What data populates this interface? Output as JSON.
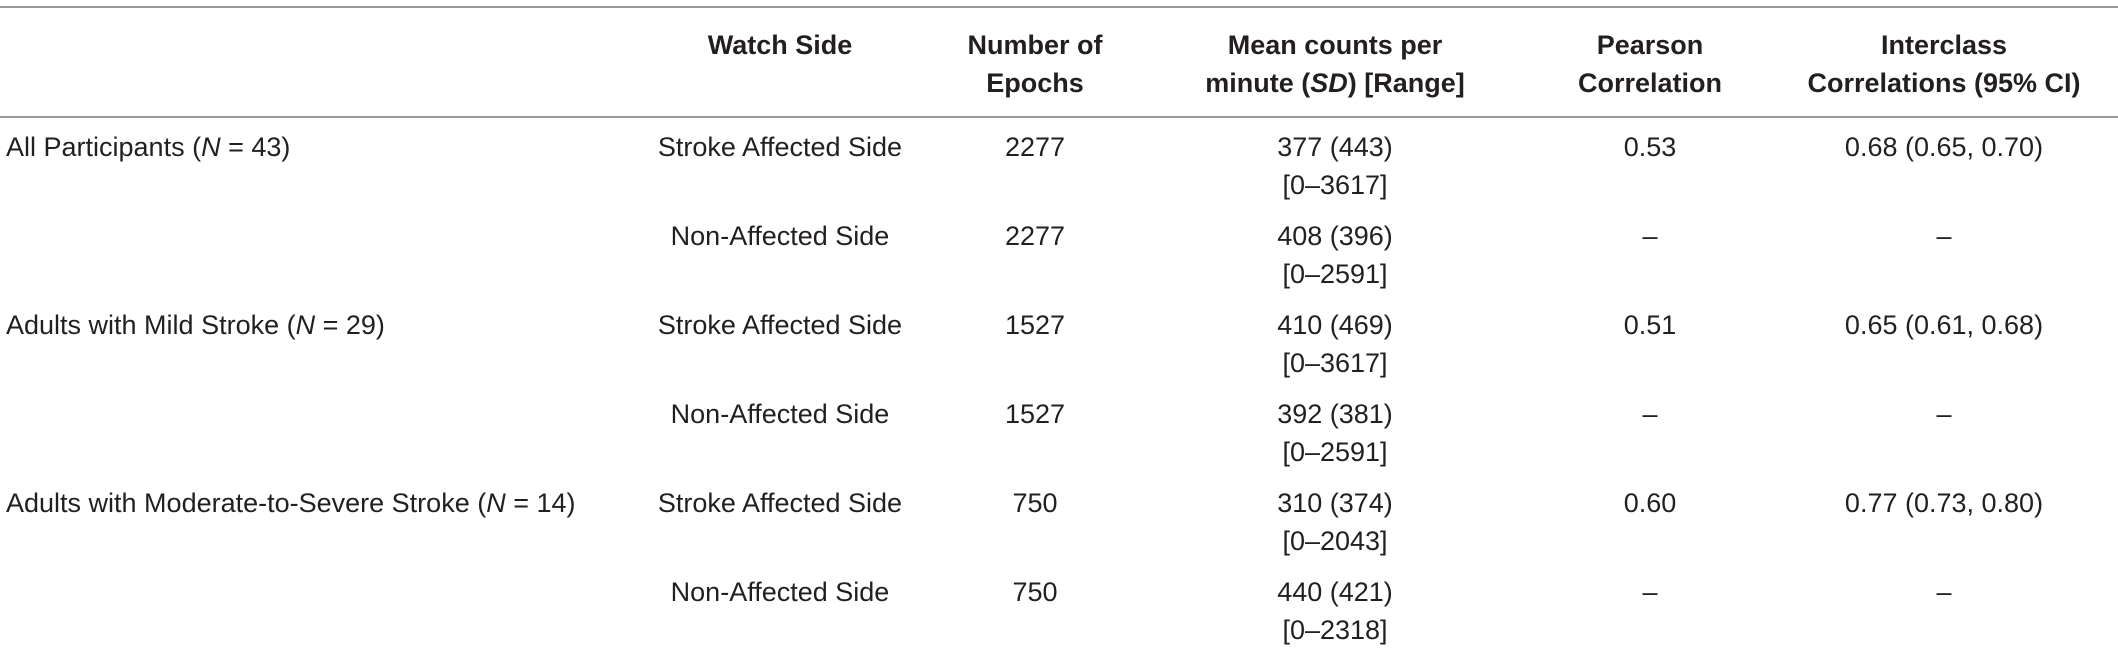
{
  "header": {
    "col1": "",
    "watch_side": "Watch Side",
    "epochs": [
      "Number of",
      "Epochs"
    ],
    "mean_counts": {
      "line1": "Mean counts per",
      "line2_pre": "minute (",
      "line2_em": "SD",
      "line2_post": ") [Range]"
    },
    "pearson": [
      "Pearson",
      "Correlation"
    ],
    "icc": [
      "Interclass",
      "Correlations (95% CI)"
    ]
  },
  "rows": [
    {
      "group_pre": "All Participants (",
      "group_em": "N",
      "group_post": " = 43)",
      "side": "Stroke Affected Side",
      "epochs": "2277",
      "mean": "377 (443)",
      "range": "[0–3617]",
      "pearson": "0.53",
      "icc": "0.68 (0.65, 0.70)"
    },
    {
      "group_pre": "",
      "group_em": "",
      "group_post": "",
      "side": "Non-Affected Side",
      "epochs": "2277",
      "mean": "408 (396)",
      "range": "[0–2591]",
      "pearson": "–",
      "icc": "–"
    },
    {
      "group_pre": "Adults with Mild Stroke (",
      "group_em": "N",
      "group_post": " = 29)",
      "side": "Stroke Affected Side",
      "epochs": "1527",
      "mean": "410 (469)",
      "range": "[0–3617]",
      "pearson": "0.51",
      "icc": "0.65 (0.61, 0.68)"
    },
    {
      "group_pre": "",
      "group_em": "",
      "group_post": "",
      "side": "Non-Affected Side",
      "epochs": "1527",
      "mean": "392 (381)",
      "range": "[0–2591]",
      "pearson": "–",
      "icc": "–"
    },
    {
      "group_pre": "Adults with Moderate-to-Severe Stroke (",
      "group_em": "N",
      "group_post": " = 14)",
      "side": "Stroke Affected Side",
      "epochs": "750",
      "mean": "310 (374)",
      "range": "[0–2043]",
      "pearson": "0.60",
      "icc": "0.77 (0.73, 0.80)"
    },
    {
      "group_pre": "",
      "group_em": "",
      "group_post": "",
      "side": "Non-Affected Side",
      "epochs": "750",
      "mean": "440 (421)",
      "range": "[0–2318]",
      "pearson": "–",
      "icc": "–"
    }
  ]
}
